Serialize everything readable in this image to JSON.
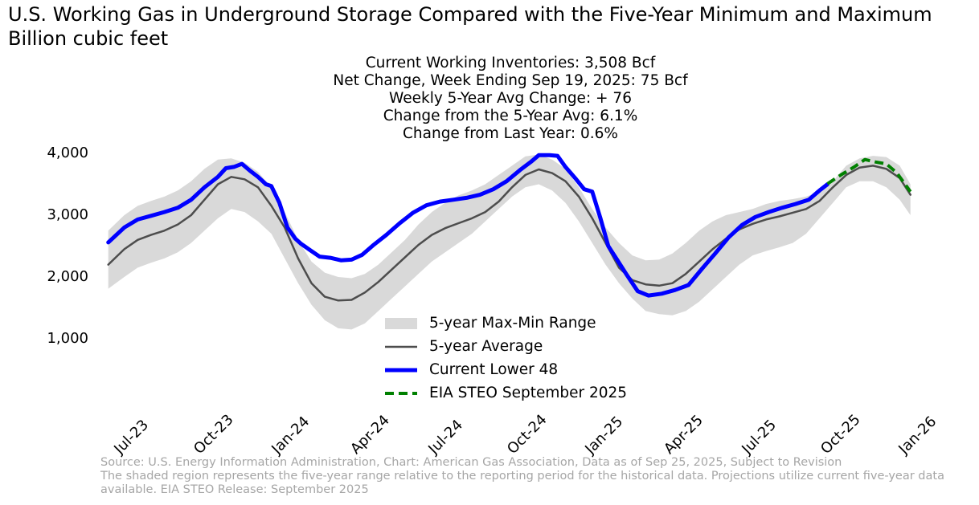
{
  "header": {
    "title": "U.S. Working Gas in Underground Storage Compared with the Five-Year Minimum and Maximum",
    "subtitle": "Billion cubic feet"
  },
  "annotations": [
    "Current Working Inventories: 3,508 Bcf",
    "Net Change, Week Ending Sep 19, 2025: 75 Bcf",
    "Weekly 5-Year Avg Change: + 76",
    "Change from the 5-Year Avg: 6.1%",
    "Change from Last Year: 0.6%"
  ],
  "footer": {
    "line1": "Source: U.S. Energy Information Administration, Chart: American Gas Association, Data as of Sep 25, 2025, Subject to Revision",
    "line2": "The shaded region represents the five-year range relative to the reporting period for the historical data. Projections utilize current five-year data available. EIA STEO Release: September 2025"
  },
  "colors": {
    "range": "#d9d9d9",
    "average": "#4d4d4d",
    "current": "#0000ff",
    "steo": "#008000",
    "source_text": "#a6a6a6"
  },
  "chart_data": {
    "type": "line",
    "xlabel": "",
    "ylabel": "",
    "x_unit": "month (0 = Jul-23)",
    "xlim": [
      0,
      30
    ],
    "ylim": [
      0,
      4000
    ],
    "grid": false,
    "legend_position": "bottom-center",
    "yticks": [
      1000,
      2000,
      3000,
      4000
    ],
    "ytick_labels": [
      "1,000",
      "2,000",
      "3,000",
      "4,000"
    ],
    "xtick_labels": [
      "Jul-23",
      "Oct-23",
      "Jan-24",
      "Apr-24",
      "Jul-24",
      "Oct-24",
      "Jan-25",
      "Apr-25",
      "Jul-25",
      "Oct-25",
      "Jan-26"
    ],
    "xtick_positions": [
      0,
      3,
      6,
      9,
      12,
      15,
      18,
      21,
      24,
      27,
      30
    ],
    "legend": [
      "5-year Max-Min Range",
      "5-year Average",
      "Current Lower 48",
      "EIA STEO September 2025"
    ],
    "series": [
      {
        "name": "5-year Max-Min Range",
        "kind": "band",
        "x": [
          -0.1,
          0.5,
          1,
          1.5,
          2,
          2.5,
          3,
          3.5,
          4,
          4.5,
          5,
          5.5,
          6,
          6.5,
          7,
          7.5,
          8,
          8.5,
          9,
          9.5,
          10,
          10.5,
          11,
          11.5,
          12,
          12.5,
          13,
          13.5,
          14,
          14.5,
          15,
          15.5,
          16,
          16.5,
          17,
          17.5,
          18,
          18.5,
          19,
          19.5,
          20,
          20.5,
          21,
          21.5,
          22,
          22.5,
          23,
          23.5,
          24,
          24.5,
          25,
          25.5,
          26,
          26.5,
          27,
          27.5,
          28,
          28.5,
          29,
          29.5,
          29.9
        ],
        "max": [
          2750,
          3000,
          3150,
          3230,
          3300,
          3400,
          3550,
          3750,
          3900,
          3920,
          3850,
          3700,
          3450,
          3050,
          2600,
          2250,
          2070,
          2000,
          1980,
          2050,
          2200,
          2400,
          2600,
          2850,
          3050,
          3200,
          3320,
          3400,
          3500,
          3650,
          3800,
          3950,
          3980,
          3900,
          3750,
          3450,
          3100,
          2800,
          2550,
          2350,
          2270,
          2280,
          2380,
          2550,
          2750,
          2900,
          3000,
          3050,
          3100,
          3180,
          3230,
          3260,
          3300,
          3380,
          3550,
          3800,
          3920,
          3960,
          3940,
          3800,
          3500
        ],
        "min": [
          1810,
          2000,
          2150,
          2230,
          2300,
          2400,
          2550,
          2750,
          2950,
          3100,
          3050,
          2900,
          2700,
          2300,
          1900,
          1550,
          1300,
          1170,
          1150,
          1250,
          1450,
          1650,
          1850,
          2050,
          2250,
          2400,
          2550,
          2700,
          2900,
          3100,
          3300,
          3450,
          3500,
          3400,
          3200,
          2900,
          2550,
          2200,
          1900,
          1650,
          1450,
          1400,
          1380,
          1450,
          1600,
          1800,
          2000,
          2200,
          2350,
          2420,
          2480,
          2550,
          2700,
          2950,
          3200,
          3450,
          3550,
          3550,
          3450,
          3250,
          3000
        ]
      },
      {
        "name": "5-year Average",
        "x": [
          -0.1,
          0.5,
          1,
          1.5,
          2,
          2.5,
          3,
          3.5,
          4,
          4.5,
          5,
          5.5,
          6,
          6.5,
          7,
          7.5,
          8,
          8.5,
          9,
          9.5,
          10,
          10.5,
          11,
          11.5,
          12,
          12.5,
          13,
          13.5,
          14,
          14.5,
          15,
          15.5,
          16,
          16.5,
          17,
          17.5,
          18,
          18.5,
          19,
          19.5,
          20,
          20.5,
          21,
          21.5,
          22,
          22.5,
          23,
          23.5,
          24,
          24.5,
          25,
          25.5,
          26,
          26.5,
          27,
          27.5,
          28,
          28.5,
          29,
          29.5,
          29.9
        ],
        "values": [
          2200,
          2450,
          2600,
          2680,
          2750,
          2850,
          3000,
          3250,
          3500,
          3620,
          3580,
          3450,
          3150,
          2800,
          2300,
          1900,
          1680,
          1620,
          1630,
          1750,
          1920,
          2120,
          2320,
          2520,
          2680,
          2790,
          2870,
          2950,
          3050,
          3220,
          3450,
          3650,
          3740,
          3680,
          3550,
          3300,
          2950,
          2550,
          2150,
          1950,
          1880,
          1860,
          1900,
          2050,
          2250,
          2450,
          2620,
          2770,
          2860,
          2930,
          2980,
          3040,
          3100,
          3230,
          3450,
          3650,
          3770,
          3800,
          3750,
          3600,
          3330
        ]
      },
      {
        "name": "Current Lower 48",
        "x": [
          -0.1,
          0.5,
          1,
          1.5,
          2,
          2.5,
          3,
          3.5,
          4,
          4.3,
          4.6,
          4.9,
          5.2,
          5.5,
          5.8,
          6,
          6.3,
          6.6,
          6.9,
          7.1,
          7.4,
          7.8,
          8.2,
          8.6,
          9,
          9.4,
          9.8,
          10.3,
          10.8,
          11.3,
          11.8,
          12.3,
          12.8,
          13.3,
          13.8,
          14.3,
          14.8,
          15.3,
          15.7,
          16,
          16.4,
          16.7,
          17,
          17.4,
          17.7,
          18,
          18.3,
          18.6,
          18.9,
          19.3,
          19.7,
          20.1,
          20.6,
          21.1,
          21.6,
          22.1,
          22.6,
          23.1,
          23.6,
          24.1,
          24.6,
          25.1,
          25.6,
          26.1,
          26.5,
          26.8
        ],
        "values": [
          2560,
          2800,
          2930,
          2990,
          3050,
          3120,
          3250,
          3450,
          3620,
          3760,
          3780,
          3830,
          3720,
          3620,
          3500,
          3470,
          3200,
          2800,
          2620,
          2540,
          2450,
          2330,
          2310,
          2270,
          2280,
          2360,
          2510,
          2680,
          2870,
          3040,
          3160,
          3220,
          3250,
          3280,
          3330,
          3420,
          3550,
          3730,
          3860,
          3970,
          3970,
          3960,
          3780,
          3580,
          3420,
          3380,
          2960,
          2500,
          2300,
          2030,
          1770,
          1700,
          1730,
          1790,
          1870,
          2130,
          2380,
          2640,
          2840,
          2970,
          3050,
          3120,
          3180,
          3250,
          3400,
          3500
        ]
      },
      {
        "name": "EIA STEO September 2025",
        "x": [
          26.8,
          27.3,
          27.8,
          28.2,
          28.6,
          29,
          29.4,
          29.9
        ],
        "values": [
          3508,
          3650,
          3780,
          3900,
          3860,
          3830,
          3680,
          3380
        ]
      }
    ]
  }
}
